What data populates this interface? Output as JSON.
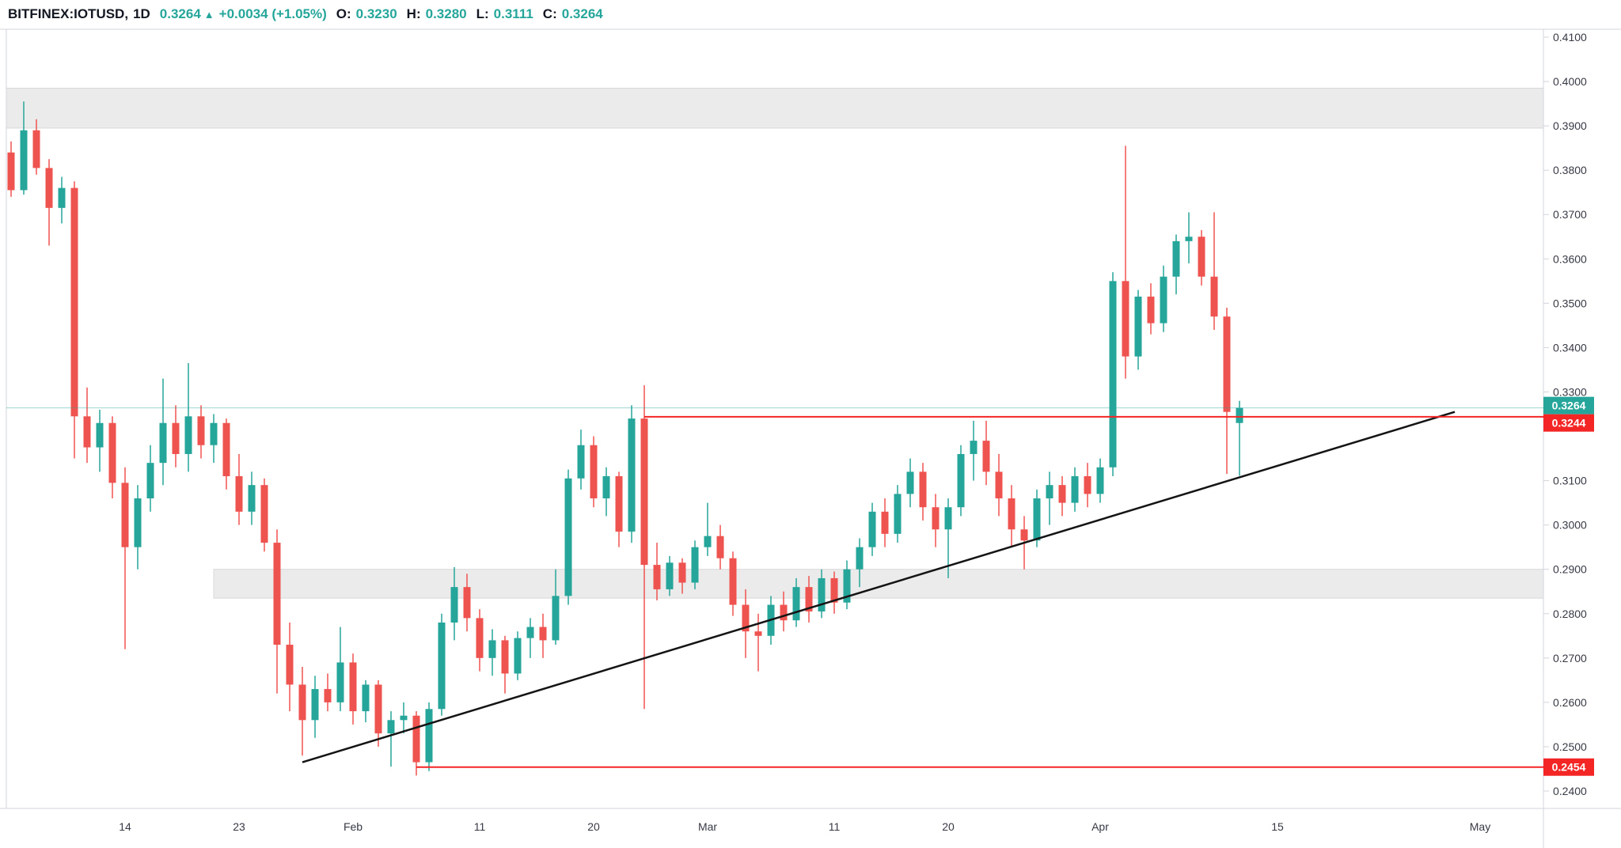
{
  "header": {
    "symbol": "BITFINEX:IOTUSD,",
    "interval": "1D",
    "price": "0.3264",
    "arrow": "▲",
    "change": "+0.0034 (+1.05%)",
    "open_label": "O:",
    "open": "0.3230",
    "high_label": "H:",
    "high": "0.3280",
    "low_label": "L:",
    "low": "0.3111",
    "close_label": "C:",
    "close": "0.3264"
  },
  "colors": {
    "up": "#26a69a",
    "down": "#ef5350",
    "header_text": "#131722",
    "header_value": "#26a69a",
    "axis_text": "#363a45",
    "frame": "#d1d4dc",
    "zone_fill": "#ebebeb",
    "zone_border": "#d8d8d8",
    "trendline": "#141414",
    "level_line": "#f42525",
    "level_label_bg": "#f42525",
    "last_price_label_bg": "#26a69a",
    "label_text": "#ffffff"
  },
  "chart_data": {
    "type": "candlestick",
    "symbol": "BITFINEX:IOTUSD",
    "interval": "1D",
    "grid": false,
    "price_axis": {
      "min": 0.24,
      "max": 0.41,
      "tick_step": 0.01,
      "tick_labels": [
        "0.4100",
        "0.4000",
        "0.3900",
        "0.3800",
        "0.3700",
        "0.3600",
        "0.3500",
        "0.3400",
        "0.3300",
        "0.3100",
        "0.3000",
        "0.2900",
        "0.2800",
        "0.2700",
        "0.2600",
        "0.2500",
        "0.2400"
      ]
    },
    "time_axis": {
      "tick_labels": [
        {
          "label": "14",
          "index": 9
        },
        {
          "label": "23",
          "index": 18
        },
        {
          "label": "Feb",
          "index": 27
        },
        {
          "label": "11",
          "index": 37
        },
        {
          "label": "20",
          "index": 46
        },
        {
          "label": "Mar",
          "index": 55
        },
        {
          "label": "11",
          "index": 65
        },
        {
          "label": "20",
          "index": 74
        },
        {
          "label": "Apr",
          "index": 86
        },
        {
          "label": "15",
          "index": 100
        },
        {
          "label": "May",
          "index": 116
        }
      ]
    },
    "candles": {
      "format": "[open, high, low, close]",
      "ohlc": [
        [
          0.384,
          0.3865,
          0.374,
          0.3755
        ],
        [
          0.3755,
          0.3955,
          0.3745,
          0.389
        ],
        [
          0.389,
          0.3915,
          0.379,
          0.3805
        ],
        [
          0.3805,
          0.3825,
          0.363,
          0.3715
        ],
        [
          0.3715,
          0.3785,
          0.368,
          0.376
        ],
        [
          0.376,
          0.3775,
          0.315,
          0.3245
        ],
        [
          0.3245,
          0.331,
          0.314,
          0.3175
        ],
        [
          0.3175,
          0.326,
          0.312,
          0.323
        ],
        [
          0.323,
          0.3245,
          0.306,
          0.3095
        ],
        [
          0.3095,
          0.313,
          0.272,
          0.295
        ],
        [
          0.295,
          0.309,
          0.29,
          0.306
        ],
        [
          0.306,
          0.318,
          0.303,
          0.314
        ],
        [
          0.314,
          0.333,
          0.309,
          0.323
        ],
        [
          0.323,
          0.327,
          0.313,
          0.316
        ],
        [
          0.316,
          0.3365,
          0.312,
          0.3245
        ],
        [
          0.3245,
          0.327,
          0.315,
          0.318
        ],
        [
          0.318,
          0.325,
          0.314,
          0.323
        ],
        [
          0.323,
          0.324,
          0.308,
          0.311
        ],
        [
          0.311,
          0.316,
          0.3,
          0.303
        ],
        [
          0.303,
          0.312,
          0.3,
          0.309
        ],
        [
          0.309,
          0.3105,
          0.294,
          0.296
        ],
        [
          0.296,
          0.299,
          0.262,
          0.273
        ],
        [
          0.273,
          0.278,
          0.258,
          0.264
        ],
        [
          0.264,
          0.268,
          0.248,
          0.256
        ],
        [
          0.256,
          0.266,
          0.252,
          0.263
        ],
        [
          0.263,
          0.2665,
          0.258,
          0.26
        ],
        [
          0.26,
          0.277,
          0.258,
          0.269
        ],
        [
          0.269,
          0.271,
          0.255,
          0.258
        ],
        [
          0.258,
          0.265,
          0.2555,
          0.264
        ],
        [
          0.264,
          0.265,
          0.25,
          0.253
        ],
        [
          0.253,
          0.258,
          0.2455,
          0.256
        ],
        [
          0.256,
          0.26,
          0.253,
          0.257
        ],
        [
          0.257,
          0.258,
          0.2435,
          0.2465
        ],
        [
          0.2465,
          0.26,
          0.2445,
          0.2585
        ],
        [
          0.2585,
          0.28,
          0.257,
          0.278
        ],
        [
          0.278,
          0.2905,
          0.274,
          0.286
        ],
        [
          0.286,
          0.289,
          0.276,
          0.279
        ],
        [
          0.279,
          0.281,
          0.267,
          0.27
        ],
        [
          0.27,
          0.2765,
          0.266,
          0.274
        ],
        [
          0.274,
          0.275,
          0.262,
          0.2665
        ],
        [
          0.2665,
          0.276,
          0.265,
          0.2745
        ],
        [
          0.2745,
          0.279,
          0.27,
          0.277
        ],
        [
          0.277,
          0.28,
          0.27,
          0.274
        ],
        [
          0.274,
          0.29,
          0.273,
          0.284
        ],
        [
          0.284,
          0.3125,
          0.282,
          0.3105
        ],
        [
          0.3105,
          0.3215,
          0.308,
          0.318
        ],
        [
          0.318,
          0.32,
          0.304,
          0.306
        ],
        [
          0.306,
          0.313,
          0.302,
          0.311
        ],
        [
          0.311,
          0.312,
          0.295,
          0.2985
        ],
        [
          0.2985,
          0.327,
          0.296,
          0.324
        ],
        [
          0.324,
          0.3315,
          0.2585,
          0.291
        ],
        [
          0.291,
          0.296,
          0.283,
          0.2855
        ],
        [
          0.2855,
          0.293,
          0.284,
          0.2915
        ],
        [
          0.2915,
          0.2925,
          0.2845,
          0.287
        ],
        [
          0.287,
          0.2965,
          0.2855,
          0.295
        ],
        [
          0.295,
          0.305,
          0.293,
          0.2975
        ],
        [
          0.2975,
          0.3,
          0.29,
          0.2925
        ],
        [
          0.2925,
          0.294,
          0.2795,
          0.282
        ],
        [
          0.282,
          0.2855,
          0.27,
          0.276
        ],
        [
          0.276,
          0.28,
          0.267,
          0.275
        ],
        [
          0.275,
          0.284,
          0.273,
          0.282
        ],
        [
          0.282,
          0.285,
          0.276,
          0.2785
        ],
        [
          0.2785,
          0.288,
          0.277,
          0.286
        ],
        [
          0.286,
          0.2885,
          0.278,
          0.2805
        ],
        [
          0.2805,
          0.29,
          0.279,
          0.288
        ],
        [
          0.288,
          0.2895,
          0.28,
          0.2825
        ],
        [
          0.2825,
          0.292,
          0.281,
          0.29
        ],
        [
          0.29,
          0.297,
          0.286,
          0.295
        ],
        [
          0.295,
          0.305,
          0.293,
          0.303
        ],
        [
          0.303,
          0.306,
          0.295,
          0.298
        ],
        [
          0.298,
          0.309,
          0.296,
          0.307
        ],
        [
          0.307,
          0.315,
          0.304,
          0.312
        ],
        [
          0.312,
          0.314,
          0.301,
          0.304
        ],
        [
          0.304,
          0.307,
          0.295,
          0.299
        ],
        [
          0.299,
          0.306,
          0.288,
          0.304
        ],
        [
          0.304,
          0.318,
          0.302,
          0.316
        ],
        [
          0.316,
          0.3235,
          0.31,
          0.319
        ],
        [
          0.319,
          0.3235,
          0.309,
          0.312
        ],
        [
          0.312,
          0.316,
          0.302,
          0.306
        ],
        [
          0.306,
          0.309,
          0.295,
          0.299
        ],
        [
          0.299,
          0.302,
          0.29,
          0.2965
        ],
        [
          0.2965,
          0.308,
          0.295,
          0.306
        ],
        [
          0.306,
          0.312,
          0.3,
          0.309
        ],
        [
          0.309,
          0.311,
          0.302,
          0.305
        ],
        [
          0.305,
          0.313,
          0.303,
          0.311
        ],
        [
          0.311,
          0.314,
          0.304,
          0.307
        ],
        [
          0.307,
          0.315,
          0.305,
          0.313
        ],
        [
          0.313,
          0.357,
          0.311,
          0.355
        ],
        [
          0.355,
          0.3855,
          0.333,
          0.338
        ],
        [
          0.338,
          0.353,
          0.335,
          0.3515
        ],
        [
          0.3515,
          0.3545,
          0.343,
          0.3455
        ],
        [
          0.3455,
          0.3585,
          0.3435,
          0.356
        ],
        [
          0.356,
          0.3655,
          0.352,
          0.364
        ],
        [
          0.364,
          0.3705,
          0.359,
          0.365
        ],
        [
          0.365,
          0.3665,
          0.354,
          0.356
        ],
        [
          0.356,
          0.3705,
          0.344,
          0.347
        ],
        [
          0.347,
          0.349,
          0.3115,
          0.3255
        ],
        [
          0.323,
          0.328,
          0.3111,
          0.3264
        ]
      ]
    },
    "annotations": {
      "zones": [
        {
          "name": "resistance-zone",
          "price_top": 0.3985,
          "price_bottom": 0.3895,
          "from_index": null
        },
        {
          "name": "support-zone",
          "price_top": 0.29,
          "price_bottom": 0.2835,
          "from_index": 16
        }
      ],
      "hlines": [
        {
          "price": 0.3244,
          "label": "0.3244",
          "from_index": 50
        },
        {
          "price": 0.2454,
          "label": "0.2454",
          "from_index": 32
        }
      ],
      "trendline": {
        "from": {
          "index": 23,
          "price": 0.2465
        },
        "to": {
          "index": 114,
          "price": 0.3255
        }
      },
      "last_price": {
        "price": 0.3264,
        "label": "0.3264"
      }
    }
  }
}
